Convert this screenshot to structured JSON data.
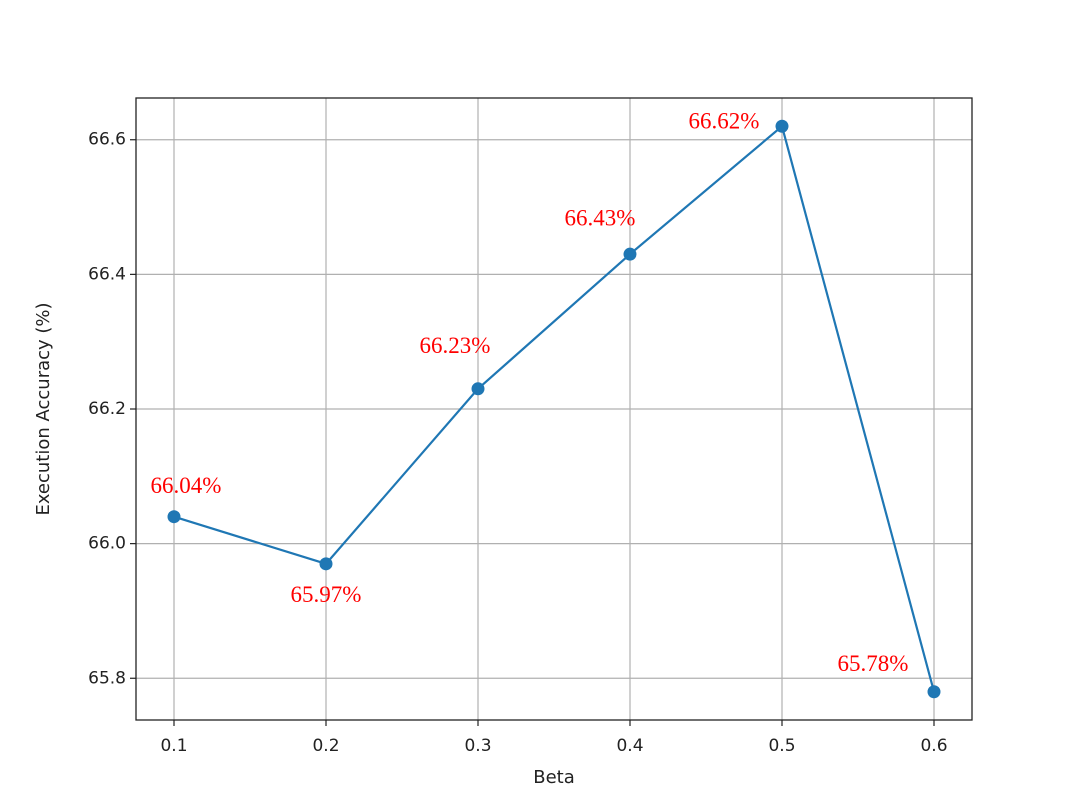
{
  "chart_data": {
    "type": "line",
    "xlabel": "Beta",
    "ylabel": "Execution Accuracy (%)",
    "x": [
      0.1,
      0.2,
      0.3,
      0.4,
      0.5,
      0.6
    ],
    "series": [
      {
        "color": "#1f77b4",
        "values": [
          66.04,
          65.97,
          66.23,
          66.43,
          66.62,
          65.78
        ],
        "value_labels": [
          "66.04%",
          "65.97%",
          "66.23%",
          "66.43%",
          "66.62%",
          "65.78%"
        ],
        "label_color": "#ff0000"
      }
    ],
    "xlim": [
      0.075,
      0.625
    ],
    "ylim": [
      65.738,
      66.662
    ],
    "xticks": [
      0.1,
      0.2,
      0.3,
      0.4,
      0.5,
      0.6
    ],
    "yticks": [
      65.8,
      {
        "value": 66,
        "label": "66.0"
      },
      66.2,
      66.4,
      66.6
    ],
    "grid": true
  }
}
